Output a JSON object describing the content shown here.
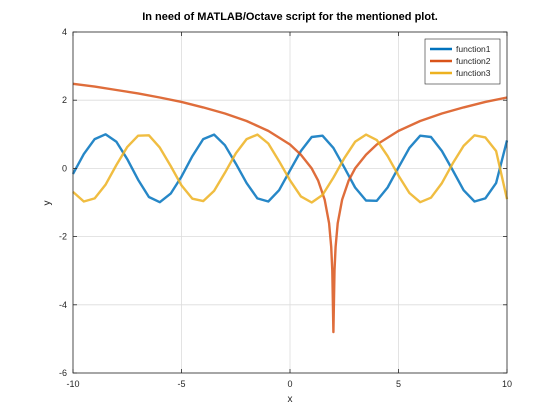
{
  "chart_data": {
    "type": "line",
    "title": "In need of MATLAB/Octave script for the mentioned plot.",
    "xlabel": "x",
    "ylabel": "y",
    "xlim": [
      -10,
      10
    ],
    "ylim": [
      -6,
      4
    ],
    "xticks": [
      -10,
      -5,
      0,
      5,
      10
    ],
    "yticks": [
      -6,
      -4,
      -2,
      0,
      2,
      4
    ],
    "grid": true,
    "legend_position": "top-right",
    "series": [
      {
        "name": "function1",
        "color": "#0072bd",
        "x": [
          -10,
          -9.5,
          -9,
          -8.5,
          -8,
          -7.5,
          -7,
          -6.5,
          -6,
          -5.5,
          -5,
          -4.5,
          -4,
          -3.5,
          -3,
          -2.5,
          -2,
          -1.5,
          -1,
          -0.5,
          0,
          0.5,
          1,
          1.5,
          2,
          2.5,
          3,
          3.5,
          4,
          4.5,
          5,
          5.5,
          6,
          6.5,
          7,
          7.5,
          8,
          8.5,
          9,
          9.5,
          10
        ],
        "y": [
          -0.16,
          0.42,
          0.86,
          1.0,
          0.78,
          0.27,
          -0.33,
          -0.84,
          -0.99,
          -0.74,
          -0.24,
          0.36,
          0.86,
          0.99,
          0.68,
          0.14,
          -0.43,
          -0.88,
          -0.97,
          -0.64,
          -0.06,
          0.51,
          0.92,
          0.96,
          0.6,
          0.03,
          -0.56,
          -0.94,
          -0.95,
          -0.56,
          0.03,
          0.6,
          0.96,
          0.92,
          0.51,
          -0.06,
          -0.64,
          -0.97,
          -0.88,
          -0.43,
          0.82
        ]
      },
      {
        "name": "function2",
        "color": "#d95319",
        "x": [
          -10,
          -9,
          -8,
          -7,
          -6,
          -5,
          -4,
          -3,
          -2,
          -1,
          0,
          0.5,
          1,
          1.3,
          1.6,
          1.8,
          1.9,
          1.95,
          2,
          2.05,
          2.1,
          2.2,
          2.4,
          2.7,
          3,
          3.5,
          4,
          5,
          6,
          7,
          8,
          9,
          10
        ],
        "y": [
          2.48,
          2.4,
          2.3,
          2.2,
          2.08,
          1.95,
          1.79,
          1.61,
          1.39,
          1.1,
          0.7,
          0.4,
          0.0,
          -0.36,
          -0.92,
          -1.61,
          -2.3,
          -3.0,
          -4.8,
          -3.0,
          -2.3,
          -1.61,
          -0.92,
          -0.36,
          0.0,
          0.4,
          0.7,
          1.1,
          1.39,
          1.61,
          1.79,
          1.95,
          2.08
        ]
      },
      {
        "name": "function3",
        "color": "#edb120",
        "x": [
          -10,
          -9.5,
          -9,
          -8.5,
          -8,
          -7.5,
          -7,
          -6.5,
          -6,
          -5.5,
          -5,
          -4.5,
          -4,
          -3.5,
          -3,
          -2.5,
          -2,
          -1.5,
          -1,
          -0.5,
          0,
          0.5,
          1,
          1.5,
          2,
          2.5,
          3,
          3.5,
          4,
          4.5,
          5,
          5.5,
          6,
          6.5,
          7,
          7.5,
          8,
          8.5,
          9,
          9.5,
          10
        ],
        "y": [
          -0.69,
          -0.97,
          -0.88,
          -0.48,
          0.1,
          0.63,
          0.96,
          0.97,
          0.61,
          0.07,
          -0.5,
          -0.89,
          -0.96,
          -0.66,
          -0.13,
          0.44,
          0.86,
          0.99,
          0.73,
          0.21,
          -0.35,
          -0.82,
          -1.0,
          -0.78,
          -0.27,
          0.3,
          0.78,
          0.99,
          0.83,
          0.36,
          -0.21,
          -0.72,
          -0.99,
          -0.86,
          -0.43,
          0.15,
          0.66,
          0.97,
          0.91,
          0.51,
          -0.9
        ]
      }
    ]
  }
}
